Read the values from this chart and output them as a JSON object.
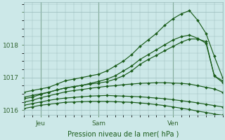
{
  "xlabel": "Pression niveau de la mer( hPa )",
  "bg_color": "#cce8e8",
  "grid_color": "#99bbbb",
  "line_color": "#1a5c1a",
  "tick_label_color": "#336633",
  "xlabel_color": "#1a5c1a",
  "ylim": [
    1015.85,
    1019.3
  ],
  "xlim": [
    0,
    24
  ],
  "xtick_positions": [
    2,
    9,
    18
  ],
  "xtick_labels": [
    "Jeu",
    "Sam",
    "Ven"
  ],
  "ytick_positions": [
    1016,
    1017,
    1018
  ],
  "num_points": 25,
  "series": [
    [
      1016.55,
      1016.6,
      1016.65,
      1016.7,
      1016.8,
      1016.9,
      1016.95,
      1017.0,
      1017.05,
      1017.1,
      1017.2,
      1017.35,
      1017.5,
      1017.7,
      1017.95,
      1018.15,
      1018.35,
      1018.6,
      1018.8,
      1018.95,
      1019.05,
      1018.75,
      1018.35,
      1017.65,
      1017.0
    ],
    [
      1016.4,
      1016.45,
      1016.5,
      1016.55,
      1016.62,
      1016.68,
      1016.72,
      1016.76,
      1016.82,
      1016.88,
      1016.95,
      1017.05,
      1017.2,
      1017.35,
      1017.55,
      1017.7,
      1017.85,
      1018.0,
      1018.15,
      1018.25,
      1018.3,
      1018.2,
      1018.05,
      1017.05,
      1016.85
    ],
    [
      1016.25,
      1016.3,
      1016.38,
      1016.44,
      1016.5,
      1016.56,
      1016.6,
      1016.63,
      1016.67,
      1016.7,
      1016.73,
      1016.75,
      1016.78,
      1016.8,
      1016.82,
      1016.83,
      1016.84,
      1016.84,
      1016.83,
      1016.82,
      1016.8,
      1016.75,
      1016.7,
      1016.65,
      1016.55
    ],
    [
      1016.15,
      1016.2,
      1016.25,
      1016.3,
      1016.34,
      1016.37,
      1016.39,
      1016.41,
      1016.43,
      1016.44,
      1016.45,
      1016.44,
      1016.43,
      1016.42,
      1016.41,
      1016.39,
      1016.37,
      1016.35,
      1016.32,
      1016.29,
      1016.26,
      1016.22,
      1016.18,
      1016.14,
      1016.1
    ],
    [
      1016.05,
      1016.1,
      1016.15,
      1016.18,
      1016.21,
      1016.24,
      1016.25,
      1016.26,
      1016.27,
      1016.27,
      1016.27,
      1016.26,
      1016.25,
      1016.24,
      1016.22,
      1016.2,
      1016.17,
      1016.14,
      1016.1,
      1016.06,
      1016.02,
      1015.97,
      1015.93,
      1015.88,
      1015.85
    ],
    [
      1016.35,
      1016.4,
      1016.48,
      1016.55,
      1016.62,
      1016.68,
      1016.72,
      1016.76,
      1016.8,
      1016.83,
      1016.87,
      1016.95,
      1017.05,
      1017.2,
      1017.4,
      1017.55,
      1017.68,
      1017.82,
      1017.95,
      1018.08,
      1018.18,
      1018.18,
      1018.1,
      1017.05,
      1016.9
    ]
  ]
}
